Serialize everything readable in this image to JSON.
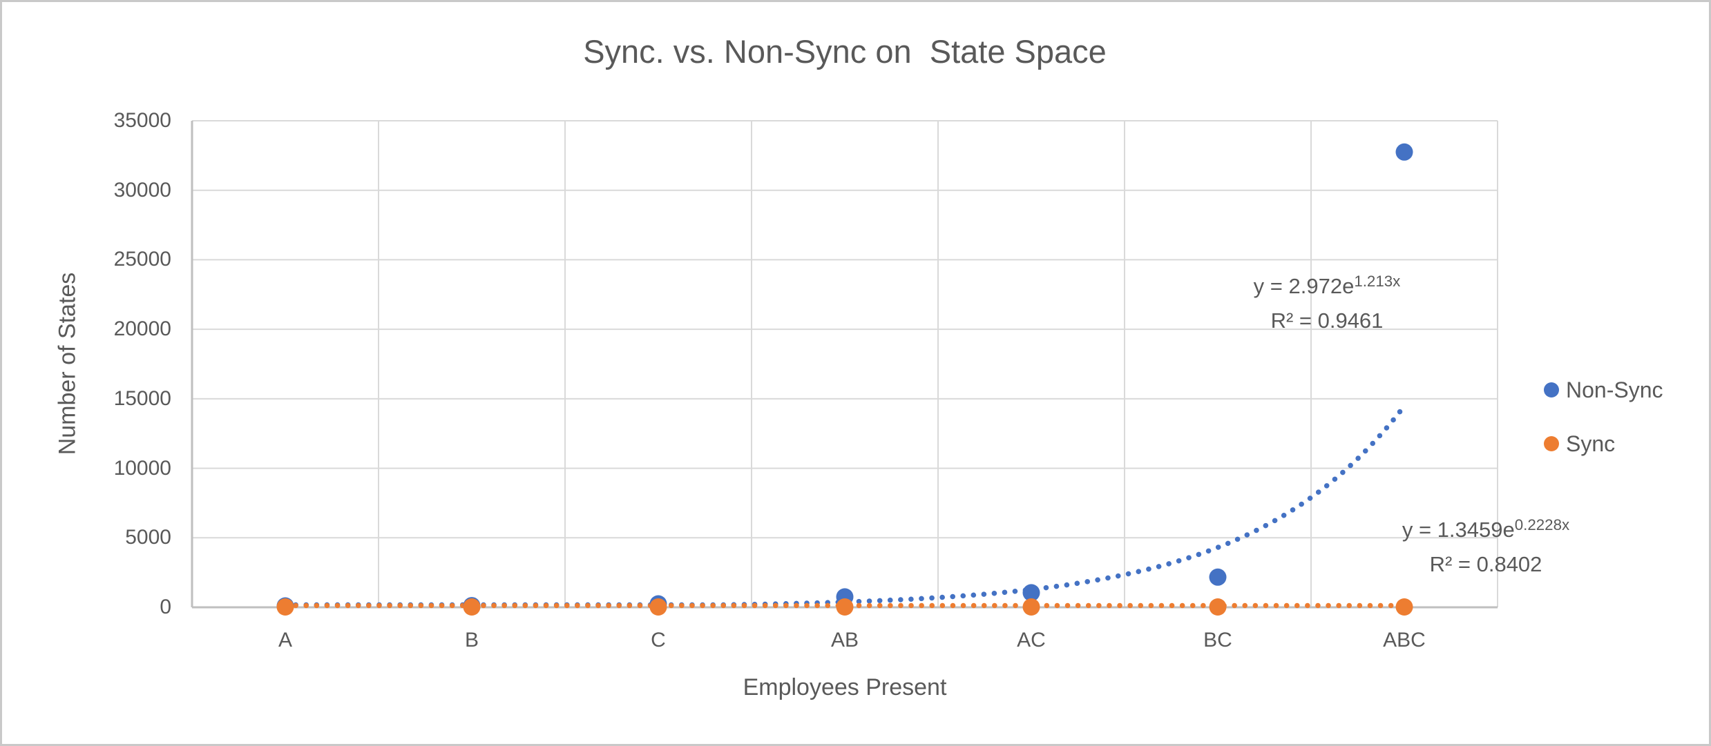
{
  "window": {
    "background": "#ffffff",
    "frame_border_color": "#c9c9c9"
  },
  "chart_data": {
    "type": "scatter",
    "title": "Sync. vs. Non-Sync on  State Space",
    "xlabel": "Employees Present",
    "ylabel": "Number of States",
    "categories": [
      "A",
      "B",
      "C",
      "AB",
      "AC",
      "BC",
      "ABC"
    ],
    "series": [
      {
        "name": "Non-Sync",
        "color": "#4472C4",
        "values": [
          100,
          120,
          250,
          750,
          1050,
          2170,
          32750
        ],
        "values_estimated_from_pixels": true,
        "trendline": {
          "type": "exponential",
          "a": 2.972,
          "b": 1.213,
          "style": "dotted",
          "equation_base": "y = 2.972e",
          "equation_sup": "1.213x",
          "r2": "R² = 0.9461"
        }
      },
      {
        "name": "Sync",
        "color": "#ED7D31",
        "values": [
          2,
          2,
          3,
          3,
          4,
          5,
          6
        ],
        "values_estimated_from_pixels": true,
        "note": "all Sync points plot at ≈0 at this axis scale",
        "trendline": {
          "type": "exponential",
          "a": 1.3459,
          "b": 0.2228,
          "style": "dotted",
          "equation_base": "y = 1.3459e",
          "equation_sup": "0.2228x",
          "r2": "R² = 0.8402"
        }
      }
    ],
    "ylim": [
      0,
      35000
    ],
    "yticks": [
      0,
      5000,
      10000,
      15000,
      20000,
      25000,
      30000,
      35000
    ],
    "grid": true,
    "legend_position": "right",
    "colors": {
      "text": "#595959",
      "gridline": "#D9D9D9",
      "axis_line": "#BFBFBF"
    }
  }
}
